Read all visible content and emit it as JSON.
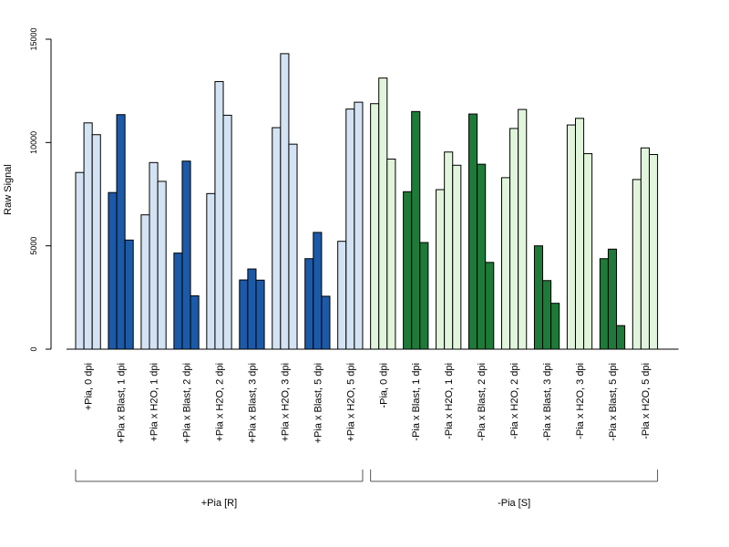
{
  "chart_data": {
    "type": "bar",
    "ylabel": "Raw Signal",
    "ylim": [
      0,
      15000
    ],
    "yticks": [
      0,
      5000,
      10000,
      15000
    ],
    "grid": false,
    "categories": [
      "+Pia, 0 dpi",
      "+Pia x Blast, 1 dpi",
      "+Pia x H2O, 1 dpi",
      "+Pia x Blast, 2 dpi",
      "+Pia x H2O, 2 dpi",
      "+Pia x Blast, 3 dpi",
      "+Pia x H2O, 3 dpi",
      "+Pia x Blast, 5 dpi",
      "+Pia x H2O, 5 dpi",
      "-Pia, 0 dpi",
      "-Pia x Blast, 1 dpi",
      "-Pia x H2O, 1 dpi",
      "-Pia x Blast, 2 dpi",
      "-Pia x H2O, 2 dpi",
      "-Pia x Blast, 3 dpi",
      "-Pia x H2O, 3 dpi",
      "-Pia x Blast, 5 dpi",
      "-Pia x H2O, 5 dpi"
    ],
    "replicates": [
      [
        8550,
        10950,
        10380
      ],
      [
        7580,
        11350,
        5280
      ],
      [
        6500,
        9030,
        8120
      ],
      [
        4650,
        9100,
        2580
      ],
      [
        7530,
        12950,
        11320
      ],
      [
        3350,
        3880,
        3340
      ],
      [
        10720,
        14300,
        9920
      ],
      [
        4380,
        5650,
        2560
      ],
      [
        5220,
        11620,
        11950
      ],
      [
        11880,
        13120,
        9200
      ],
      [
        7620,
        11500,
        5160
      ],
      [
        7720,
        9540,
        8900
      ],
      [
        11380,
        8950,
        4200
      ],
      [
        8300,
        10680,
        11600
      ],
      [
        5000,
        3320,
        2220
      ],
      [
        10850,
        11170,
        9460
      ],
      [
        4380,
        4840,
        1140
      ],
      [
        8210,
        9740,
        9420
      ]
    ],
    "colors": [
      "#d4e3f4",
      "#1c5aa8",
      "#d4e3f4",
      "#1c5aa8",
      "#d4e3f4",
      "#1c5aa8",
      "#d4e3f4",
      "#1c5aa8",
      "#d4e3f4",
      "#e1f4dc",
      "#1e7a38",
      "#e1f4dc",
      "#1e7a38",
      "#e1f4dc",
      "#1e7a38",
      "#e1f4dc",
      "#1e7a38",
      "#e1f4dc"
    ],
    "groups": [
      {
        "label": "+Pia [R]",
        "from": 0,
        "to": 8
      },
      {
        "label": "-Pia [S]",
        "from": 9,
        "to": 17
      }
    ]
  }
}
